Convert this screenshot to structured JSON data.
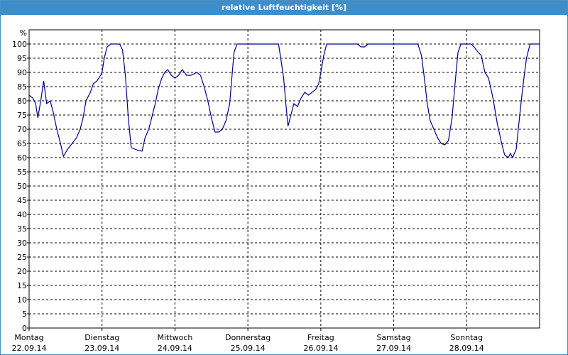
{
  "window": {
    "title": "relative Luftfeuchtigkeit [%]"
  },
  "chart_data": {
    "type": "line",
    "title": "relative Luftfeuchtigkeit [%]",
    "ylabel": "%",
    "xlabel": "",
    "ylim": [
      0,
      100
    ],
    "y_ticks": [
      0,
      5,
      10,
      15,
      20,
      25,
      30,
      35,
      40,
      45,
      50,
      55,
      60,
      65,
      70,
      75,
      80,
      85,
      90,
      95,
      100
    ],
    "x_unit": "days since 22.09.14 00:00",
    "xlim": [
      0,
      7
    ],
    "grid": true,
    "days": [
      {
        "name": "Montag",
        "date": "22.09.14"
      },
      {
        "name": "Dienstag",
        "date": "23.09.14"
      },
      {
        "name": "Mittwoch",
        "date": "24.09.14"
      },
      {
        "name": "Donnerstag",
        "date": "25.09.14"
      },
      {
        "name": "Freitag",
        "date": "26.09.14"
      },
      {
        "name": "Samstag",
        "date": "27.09.14"
      },
      {
        "name": "Sonntag",
        "date": "28.09.14"
      }
    ],
    "series": [
      {
        "color": "#00008b",
        "points": [
          [
            0.0,
            82
          ],
          [
            0.05,
            81
          ],
          [
            0.09,
            79
          ],
          [
            0.12,
            74
          ],
          [
            0.16,
            80
          ],
          [
            0.2,
            87
          ],
          [
            0.24,
            79
          ],
          [
            0.29,
            80
          ],
          [
            0.33,
            76
          ],
          [
            0.38,
            70
          ],
          [
            0.43,
            65
          ],
          [
            0.47,
            60.5
          ],
          [
            0.53,
            63
          ],
          [
            0.59,
            65
          ],
          [
            0.65,
            67
          ],
          [
            0.7,
            70
          ],
          [
            0.74,
            74
          ],
          [
            0.78,
            80
          ],
          [
            0.84,
            83
          ],
          [
            0.88,
            86
          ],
          [
            0.93,
            87
          ],
          [
            0.98,
            89
          ],
          [
            1.0,
            90
          ],
          [
            1.03,
            95
          ],
          [
            1.07,
            99
          ],
          [
            1.12,
            100
          ],
          [
            1.24,
            100
          ],
          [
            1.28,
            98
          ],
          [
            1.32,
            89
          ],
          [
            1.36,
            74
          ],
          [
            1.4,
            63.5
          ],
          [
            1.45,
            63
          ],
          [
            1.5,
            62.5
          ],
          [
            1.55,
            62.3
          ],
          [
            1.59,
            67
          ],
          [
            1.64,
            70
          ],
          [
            1.68,
            74
          ],
          [
            1.73,
            79
          ],
          [
            1.77,
            84
          ],
          [
            1.82,
            88
          ],
          [
            1.86,
            90
          ],
          [
            1.9,
            91
          ],
          [
            1.95,
            89
          ],
          [
            2.0,
            88
          ],
          [
            2.05,
            89
          ],
          [
            2.1,
            91
          ],
          [
            2.16,
            89
          ],
          [
            2.22,
            89
          ],
          [
            2.3,
            90
          ],
          [
            2.35,
            89
          ],
          [
            2.4,
            85
          ],
          [
            2.45,
            80
          ],
          [
            2.5,
            74
          ],
          [
            2.55,
            69
          ],
          [
            2.6,
            69
          ],
          [
            2.65,
            70
          ],
          [
            2.7,
            73
          ],
          [
            2.75,
            79
          ],
          [
            2.78,
            88
          ],
          [
            2.81,
            97
          ],
          [
            2.85,
            100
          ],
          [
            3.42,
            100
          ],
          [
            3.45,
            95
          ],
          [
            3.49,
            88
          ],
          [
            3.52,
            79
          ],
          [
            3.55,
            71
          ],
          [
            3.59,
            75
          ],
          [
            3.63,
            79
          ],
          [
            3.68,
            78
          ],
          [
            3.73,
            81
          ],
          [
            3.78,
            83
          ],
          [
            3.83,
            82
          ],
          [
            3.88,
            83
          ],
          [
            3.93,
            84
          ],
          [
            3.97,
            86
          ],
          [
            4.0,
            90
          ],
          [
            4.04,
            96
          ],
          [
            4.08,
            100
          ],
          [
            4.25,
            100
          ],
          [
            4.5,
            100
          ],
          [
            4.55,
            99
          ],
          [
            4.6,
            99
          ],
          [
            4.65,
            100
          ],
          [
            5.0,
            100
          ],
          [
            5.33,
            100
          ],
          [
            5.38,
            96
          ],
          [
            5.42,
            88
          ],
          [
            5.46,
            79
          ],
          [
            5.5,
            73
          ],
          [
            5.55,
            70
          ],
          [
            5.6,
            67
          ],
          [
            5.65,
            65
          ],
          [
            5.7,
            64.5
          ],
          [
            5.75,
            66
          ],
          [
            5.8,
            74
          ],
          [
            5.84,
            86
          ],
          [
            5.88,
            97
          ],
          [
            5.92,
            100
          ],
          [
            6.06,
            100
          ],
          [
            6.1,
            99
          ],
          [
            6.16,
            97
          ],
          [
            6.2,
            96
          ],
          [
            6.25,
            90
          ],
          [
            6.3,
            88
          ],
          [
            6.36,
            81
          ],
          [
            6.42,
            72
          ],
          [
            6.48,
            65
          ],
          [
            6.52,
            61
          ],
          [
            6.57,
            60
          ],
          [
            6.6,
            61.5
          ],
          [
            6.63,
            60
          ],
          [
            6.68,
            63
          ],
          [
            6.72,
            73
          ],
          [
            6.77,
            85
          ],
          [
            6.82,
            95
          ],
          [
            6.87,
            100
          ],
          [
            7.0,
            100
          ]
        ]
      }
    ]
  }
}
